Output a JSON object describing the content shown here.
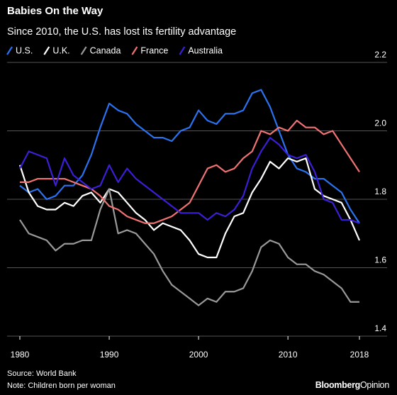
{
  "chart_data": {
    "type": "line",
    "title": "Babies On the Way",
    "subtitle": "Since 2010, the U.S. has lost its fertility advantage",
    "x": [
      1980,
      1981,
      1982,
      1983,
      1984,
      1985,
      1986,
      1987,
      1988,
      1989,
      1990,
      1991,
      1992,
      1993,
      1994,
      1995,
      1996,
      1997,
      1998,
      1999,
      2000,
      2001,
      2002,
      2003,
      2004,
      2005,
      2006,
      2007,
      2008,
      2009,
      2010,
      2011,
      2012,
      2013,
      2014,
      2015,
      2016,
      2017,
      2018
    ],
    "xlim": [
      1980,
      2018
    ],
    "xticks": [
      1980,
      1990,
      2000,
      2010,
      2018
    ],
    "ylim": [
      1.4,
      2.2
    ],
    "yticks": [
      1.4,
      1.6,
      1.8,
      {
        "value": 2,
        "label": "2.0"
      },
      2.2
    ],
    "grid": true,
    "series": [
      {
        "name": "U.S.",
        "color": "#2a72f0",
        "values": [
          1.84,
          1.82,
          1.83,
          1.8,
          1.81,
          1.84,
          1.84,
          1.87,
          1.93,
          2.01,
          2.08,
          2.06,
          2.05,
          2.02,
          2.0,
          1.98,
          1.98,
          1.97,
          2.0,
          2.01,
          2.06,
          2.03,
          2.02,
          2.05,
          2.05,
          2.06,
          2.11,
          2.12,
          2.07,
          2.0,
          1.93,
          1.89,
          1.88,
          1.86,
          1.86,
          1.84,
          1.82,
          1.77,
          1.73
        ]
      },
      {
        "name": "U.K.",
        "color": "#ffffff",
        "values": [
          1.9,
          1.82,
          1.78,
          1.77,
          1.77,
          1.79,
          1.78,
          1.81,
          1.82,
          1.79,
          1.83,
          1.82,
          1.79,
          1.76,
          1.74,
          1.71,
          1.73,
          1.72,
          1.71,
          1.68,
          1.64,
          1.63,
          1.63,
          1.7,
          1.75,
          1.76,
          1.82,
          1.86,
          1.91,
          1.89,
          1.92,
          1.91,
          1.92,
          1.83,
          1.81,
          1.8,
          1.79,
          1.74,
          1.68
        ]
      },
      {
        "name": "Canada",
        "color": "#999999",
        "values": [
          1.74,
          1.7,
          1.69,
          1.68,
          1.65,
          1.67,
          1.67,
          1.68,
          1.68,
          1.77,
          1.83,
          1.7,
          1.71,
          1.7,
          1.67,
          1.64,
          1.59,
          1.55,
          1.53,
          1.51,
          1.49,
          1.51,
          1.5,
          1.53,
          1.53,
          1.54,
          1.59,
          1.66,
          1.68,
          1.67,
          1.63,
          1.61,
          1.61,
          1.59,
          1.58,
          1.56,
          1.54,
          1.5,
          1.5
        ]
      },
      {
        "name": "France",
        "color": "#f07272",
        "values": [
          1.85,
          1.85,
          1.86,
          1.86,
          1.86,
          1.86,
          1.85,
          1.84,
          1.83,
          1.81,
          1.78,
          1.77,
          1.75,
          1.74,
          1.73,
          1.73,
          1.74,
          1.75,
          1.77,
          1.79,
          1.84,
          1.89,
          1.9,
          1.88,
          1.89,
          1.92,
          1.94,
          2.0,
          1.99,
          2.01,
          2.0,
          2.03,
          2.01,
          2.01,
          1.99,
          2.0,
          1.96,
          1.92,
          1.88
        ]
      },
      {
        "name": "Australia",
        "color": "#3b1fd6",
        "values": [
          1.89,
          1.94,
          1.93,
          1.92,
          1.84,
          1.92,
          1.87,
          1.85,
          1.83,
          1.84,
          1.9,
          1.85,
          1.89,
          1.86,
          1.84,
          1.82,
          1.8,
          1.78,
          1.76,
          1.76,
          1.76,
          1.74,
          1.76,
          1.75,
          1.77,
          1.81,
          1.89,
          1.94,
          1.98,
          1.96,
          1.93,
          1.92,
          1.93,
          1.88,
          1.8,
          1.79,
          1.74,
          1.74,
          1.73
        ]
      }
    ],
    "source": "Source: World Bank",
    "note": "Note: Children born per woman",
    "logo": [
      "Bloomberg",
      "Opinion"
    ]
  }
}
